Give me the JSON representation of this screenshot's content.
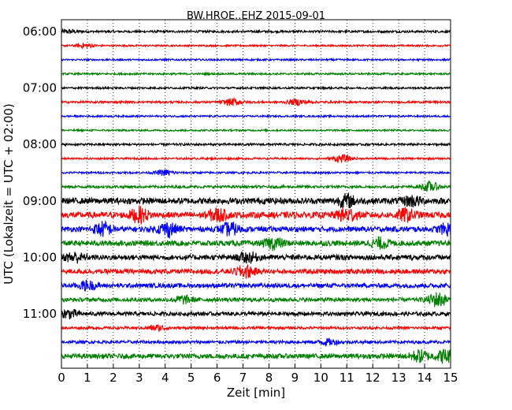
{
  "chart_data": {
    "type": "line",
    "title": "BW.HROE..EHZ 2015-09-01",
    "xlabel": "Zeit  [min]",
    "ylabel": "UTC (Lokalzeit = UTC + 02:00)",
    "xlim": [
      0,
      15
    ],
    "x_ticks": [
      "0",
      "1",
      "2",
      "3",
      "4",
      "5",
      "6",
      "7",
      "8",
      "9",
      "10",
      "11",
      "12",
      "13",
      "14",
      "15"
    ],
    "y_tick_labels": [
      "06:00",
      "07:00",
      "08:00",
      "09:00",
      "10:00",
      "11:00"
    ],
    "grid": "vertical dotted",
    "colors": [
      "#000000",
      "#ff0000",
      "#0000ff",
      "#008000"
    ],
    "series": [
      {
        "start": "06:00",
        "amplitude": 0.25,
        "bursts": [
          [
            0.3,
            0.4
          ]
        ]
      },
      {
        "start": "06:15",
        "amplitude": 0.2,
        "bursts": [
          [
            0.9,
            0.5
          ]
        ]
      },
      {
        "start": "06:30",
        "amplitude": 0.2,
        "bursts": []
      },
      {
        "start": "06:45",
        "amplitude": 0.22,
        "bursts": []
      },
      {
        "start": "07:00",
        "amplitude": 0.22,
        "bursts": []
      },
      {
        "start": "07:15",
        "amplitude": 0.25,
        "bursts": [
          [
            6.6,
            0.7
          ],
          [
            9.1,
            0.6
          ]
        ]
      },
      {
        "start": "07:30",
        "amplitude": 0.2,
        "bursts": []
      },
      {
        "start": "07:45",
        "amplitude": 0.2,
        "bursts": []
      },
      {
        "start": "08:00",
        "amplitude": 0.25,
        "bursts": []
      },
      {
        "start": "08:15",
        "amplitude": 0.22,
        "bursts": [
          [
            10.8,
            0.8
          ]
        ]
      },
      {
        "start": "08:30",
        "amplitude": 0.22,
        "bursts": [
          [
            4.0,
            0.6
          ]
        ]
      },
      {
        "start": "08:45",
        "amplitude": 0.3,
        "bursts": [
          [
            14.2,
            1.0
          ]
        ]
      },
      {
        "start": "09:00",
        "amplitude": 0.7,
        "bursts": [
          [
            11.0,
            1.2
          ],
          [
            13.5,
            1.0
          ]
        ]
      },
      {
        "start": "09:15",
        "amplitude": 0.7,
        "bursts": [
          [
            3.0,
            1.5
          ],
          [
            6.0,
            1.3
          ],
          [
            11.0,
            1.5
          ],
          [
            13.3,
            1.2
          ]
        ]
      },
      {
        "start": "09:30",
        "amplitude": 0.6,
        "bursts": [
          [
            1.6,
            1.4
          ],
          [
            4.1,
            1.5
          ],
          [
            6.5,
            1.3
          ],
          [
            14.9,
            1.2
          ]
        ]
      },
      {
        "start": "09:45",
        "amplitude": 0.6,
        "bursts": [
          [
            8.2,
            1.2
          ],
          [
            12.3,
            1.0
          ]
        ]
      },
      {
        "start": "10:00",
        "amplitude": 0.6,
        "bursts": [
          [
            0.5,
            1.0
          ],
          [
            7.2,
            1.0
          ]
        ]
      },
      {
        "start": "10:15",
        "amplitude": 0.55,
        "bursts": [
          [
            7.1,
            1.3
          ]
        ]
      },
      {
        "start": "10:30",
        "amplitude": 0.5,
        "bursts": [
          [
            1.0,
            0.9
          ]
        ]
      },
      {
        "start": "10:45",
        "amplitude": 0.45,
        "bursts": [
          [
            14.5,
            1.6
          ],
          [
            4.7,
            0.8
          ]
        ]
      },
      {
        "start": "11:00",
        "amplitude": 0.45,
        "bursts": [
          [
            0.3,
            0.9
          ]
        ]
      },
      {
        "start": "11:15",
        "amplitude": 0.3,
        "bursts": [
          [
            3.7,
            0.6
          ]
        ]
      },
      {
        "start": "11:30",
        "amplitude": 0.35,
        "bursts": [
          [
            10.3,
            0.6
          ]
        ]
      },
      {
        "start": "11:45",
        "amplitude": 0.55,
        "bursts": [
          [
            13.8,
            1.2
          ],
          [
            14.8,
            1.4
          ]
        ]
      }
    ]
  }
}
